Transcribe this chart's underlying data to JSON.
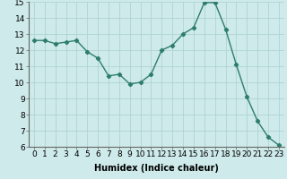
{
  "x": [
    0,
    1,
    2,
    3,
    4,
    5,
    6,
    7,
    8,
    9,
    10,
    11,
    12,
    13,
    14,
    15,
    16,
    17,
    18,
    19,
    20,
    21,
    22,
    23
  ],
  "y": [
    12.6,
    12.6,
    12.4,
    12.5,
    12.6,
    11.9,
    11.5,
    10.4,
    10.5,
    9.9,
    10.0,
    10.5,
    12.0,
    12.3,
    13.0,
    13.4,
    14.95,
    14.95,
    13.3,
    11.1,
    9.1,
    7.6,
    6.6,
    6.1
  ],
  "line_color": "#2d7d6e",
  "marker": "D",
  "marker_size": 2.2,
  "bg_color": "#ceeaea",
  "grid_color": "#aed4d4",
  "xlabel": "Humidex (Indice chaleur)",
  "xlabel_fontsize": 7,
  "tick_fontsize": 6.5,
  "ylim": [
    6,
    15
  ],
  "xlim": [
    -0.5,
    23.5
  ],
  "yticks": [
    6,
    7,
    8,
    9,
    10,
    11,
    12,
    13,
    14,
    15
  ],
  "xticks": [
    0,
    1,
    2,
    3,
    4,
    5,
    6,
    7,
    8,
    9,
    10,
    11,
    12,
    13,
    14,
    15,
    16,
    17,
    18,
    19,
    20,
    21,
    22,
    23
  ],
  "xtick_labels": [
    "0",
    "1",
    "2",
    "3",
    "4",
    "5",
    "6",
    "7",
    "8",
    "9",
    "10",
    "11",
    "12",
    "13",
    "14",
    "15",
    "16",
    "17",
    "18",
    "19",
    "20",
    "21",
    "22",
    "23"
  ],
  "line_width": 1.0
}
